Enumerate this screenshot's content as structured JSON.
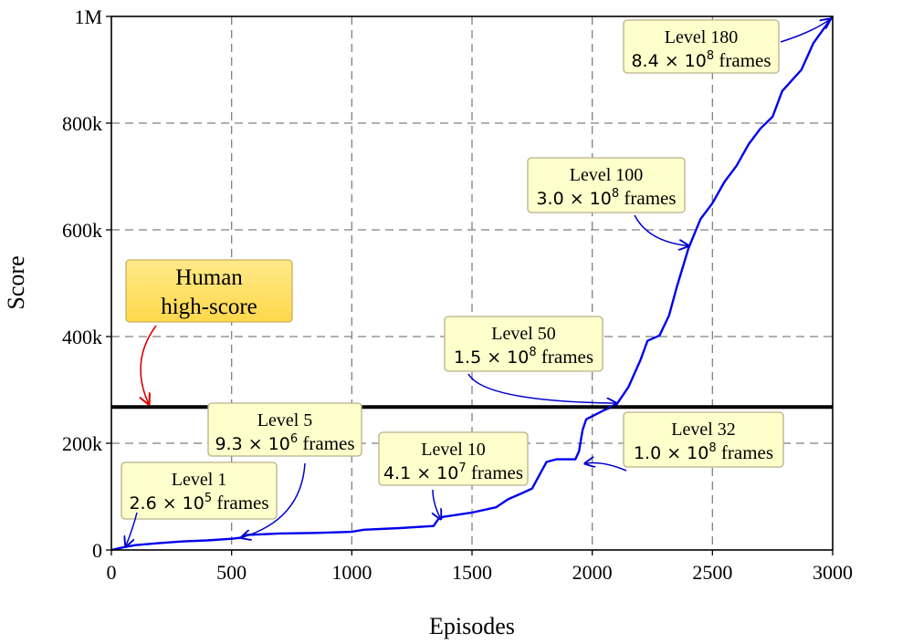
{
  "chart_data": {
    "type": "line",
    "title": "",
    "xlabel": "Episodes",
    "ylabel": "Score",
    "xlim": [
      0,
      3000
    ],
    "ylim": [
      0,
      1000000
    ],
    "xticks": [
      0,
      500,
      1000,
      1500,
      2000,
      2500,
      3000
    ],
    "xtick_labels": [
      "0",
      "500",
      "1000",
      "1500",
      "2000",
      "2500",
      "3000"
    ],
    "yticks": [
      0,
      200000,
      400000,
      600000,
      800000,
      1000000
    ],
    "ytick_labels": [
      "0",
      "200k",
      "400k",
      "600k",
      "800k",
      "1M"
    ],
    "grid": true,
    "series_color": "#0000ee",
    "series": [
      {
        "x": [
          0,
          50,
          100,
          200,
          300,
          400,
          500,
          540,
          560,
          700,
          850,
          1000,
          1050,
          1200,
          1340,
          1360,
          1380,
          1500,
          1600,
          1650,
          1700,
          1750,
          1780,
          1810,
          1850,
          1930,
          1945,
          1960,
          1975,
          2050,
          2100,
          2150,
          2200,
          2230,
          2280,
          2320,
          2350,
          2400,
          2450,
          2500,
          2550,
          2600,
          2650,
          2700,
          2750,
          2790,
          2830,
          2870,
          2920,
          2960,
          3000
        ],
        "y": [
          0,
          5000,
          9000,
          13000,
          16000,
          18000,
          21000,
          23000,
          28000,
          31000,
          32000,
          34000,
          38000,
          41000,
          45000,
          58000,
          62000,
          70000,
          80000,
          95000,
          105000,
          115000,
          140000,
          165000,
          170000,
          170000,
          185000,
          225000,
          245000,
          262000,
          272000,
          305000,
          355000,
          392000,
          402000,
          440000,
          490000,
          565000,
          620000,
          650000,
          690000,
          720000,
          760000,
          790000,
          812000,
          860000,
          880000,
          900000,
          950000,
          975000,
          1000000
        ]
      }
    ],
    "reference_line": {
      "y": 268000,
      "color": "#000000"
    },
    "annotations": [
      {
        "title": "Level 1",
        "mantissa": "2.6 × 10",
        "exponent": "5",
        "unit": "frames",
        "episode": 60,
        "score": 7000
      },
      {
        "title": "Level 5",
        "mantissa": "9.3 × 10",
        "exponent": "6",
        "unit": "frames",
        "episode": 540,
        "score": 23000
      },
      {
        "title": "Level 10",
        "mantissa": "4.1 × 10",
        "exponent": "7",
        "unit": "frames",
        "episode": 1370,
        "score": 58000
      },
      {
        "title": "Level 32",
        "mantissa": "1.0 × 10",
        "exponent": "8",
        "unit": "frames",
        "episode": 1970,
        "score": 162000
      },
      {
        "title": "Level 50",
        "mantissa": "1.5 × 10",
        "exponent": "8",
        "unit": "frames",
        "episode": 2100,
        "score": 275000
      },
      {
        "title": "Level 100",
        "mantissa": "3.0 × 10",
        "exponent": "8",
        "unit": "frames",
        "episode": 2400,
        "score": 570000
      },
      {
        "title": "Level 180",
        "mantissa": "8.4 × 10",
        "exponent": "8",
        "unit": "frames",
        "episode": 2990,
        "score": 995000
      }
    ],
    "human_label": {
      "line1": "Human",
      "line2": "high-score",
      "color": "#ffe066",
      "arrow_color": "#dd0000"
    },
    "annotation_box_color": "#ffffcc"
  }
}
